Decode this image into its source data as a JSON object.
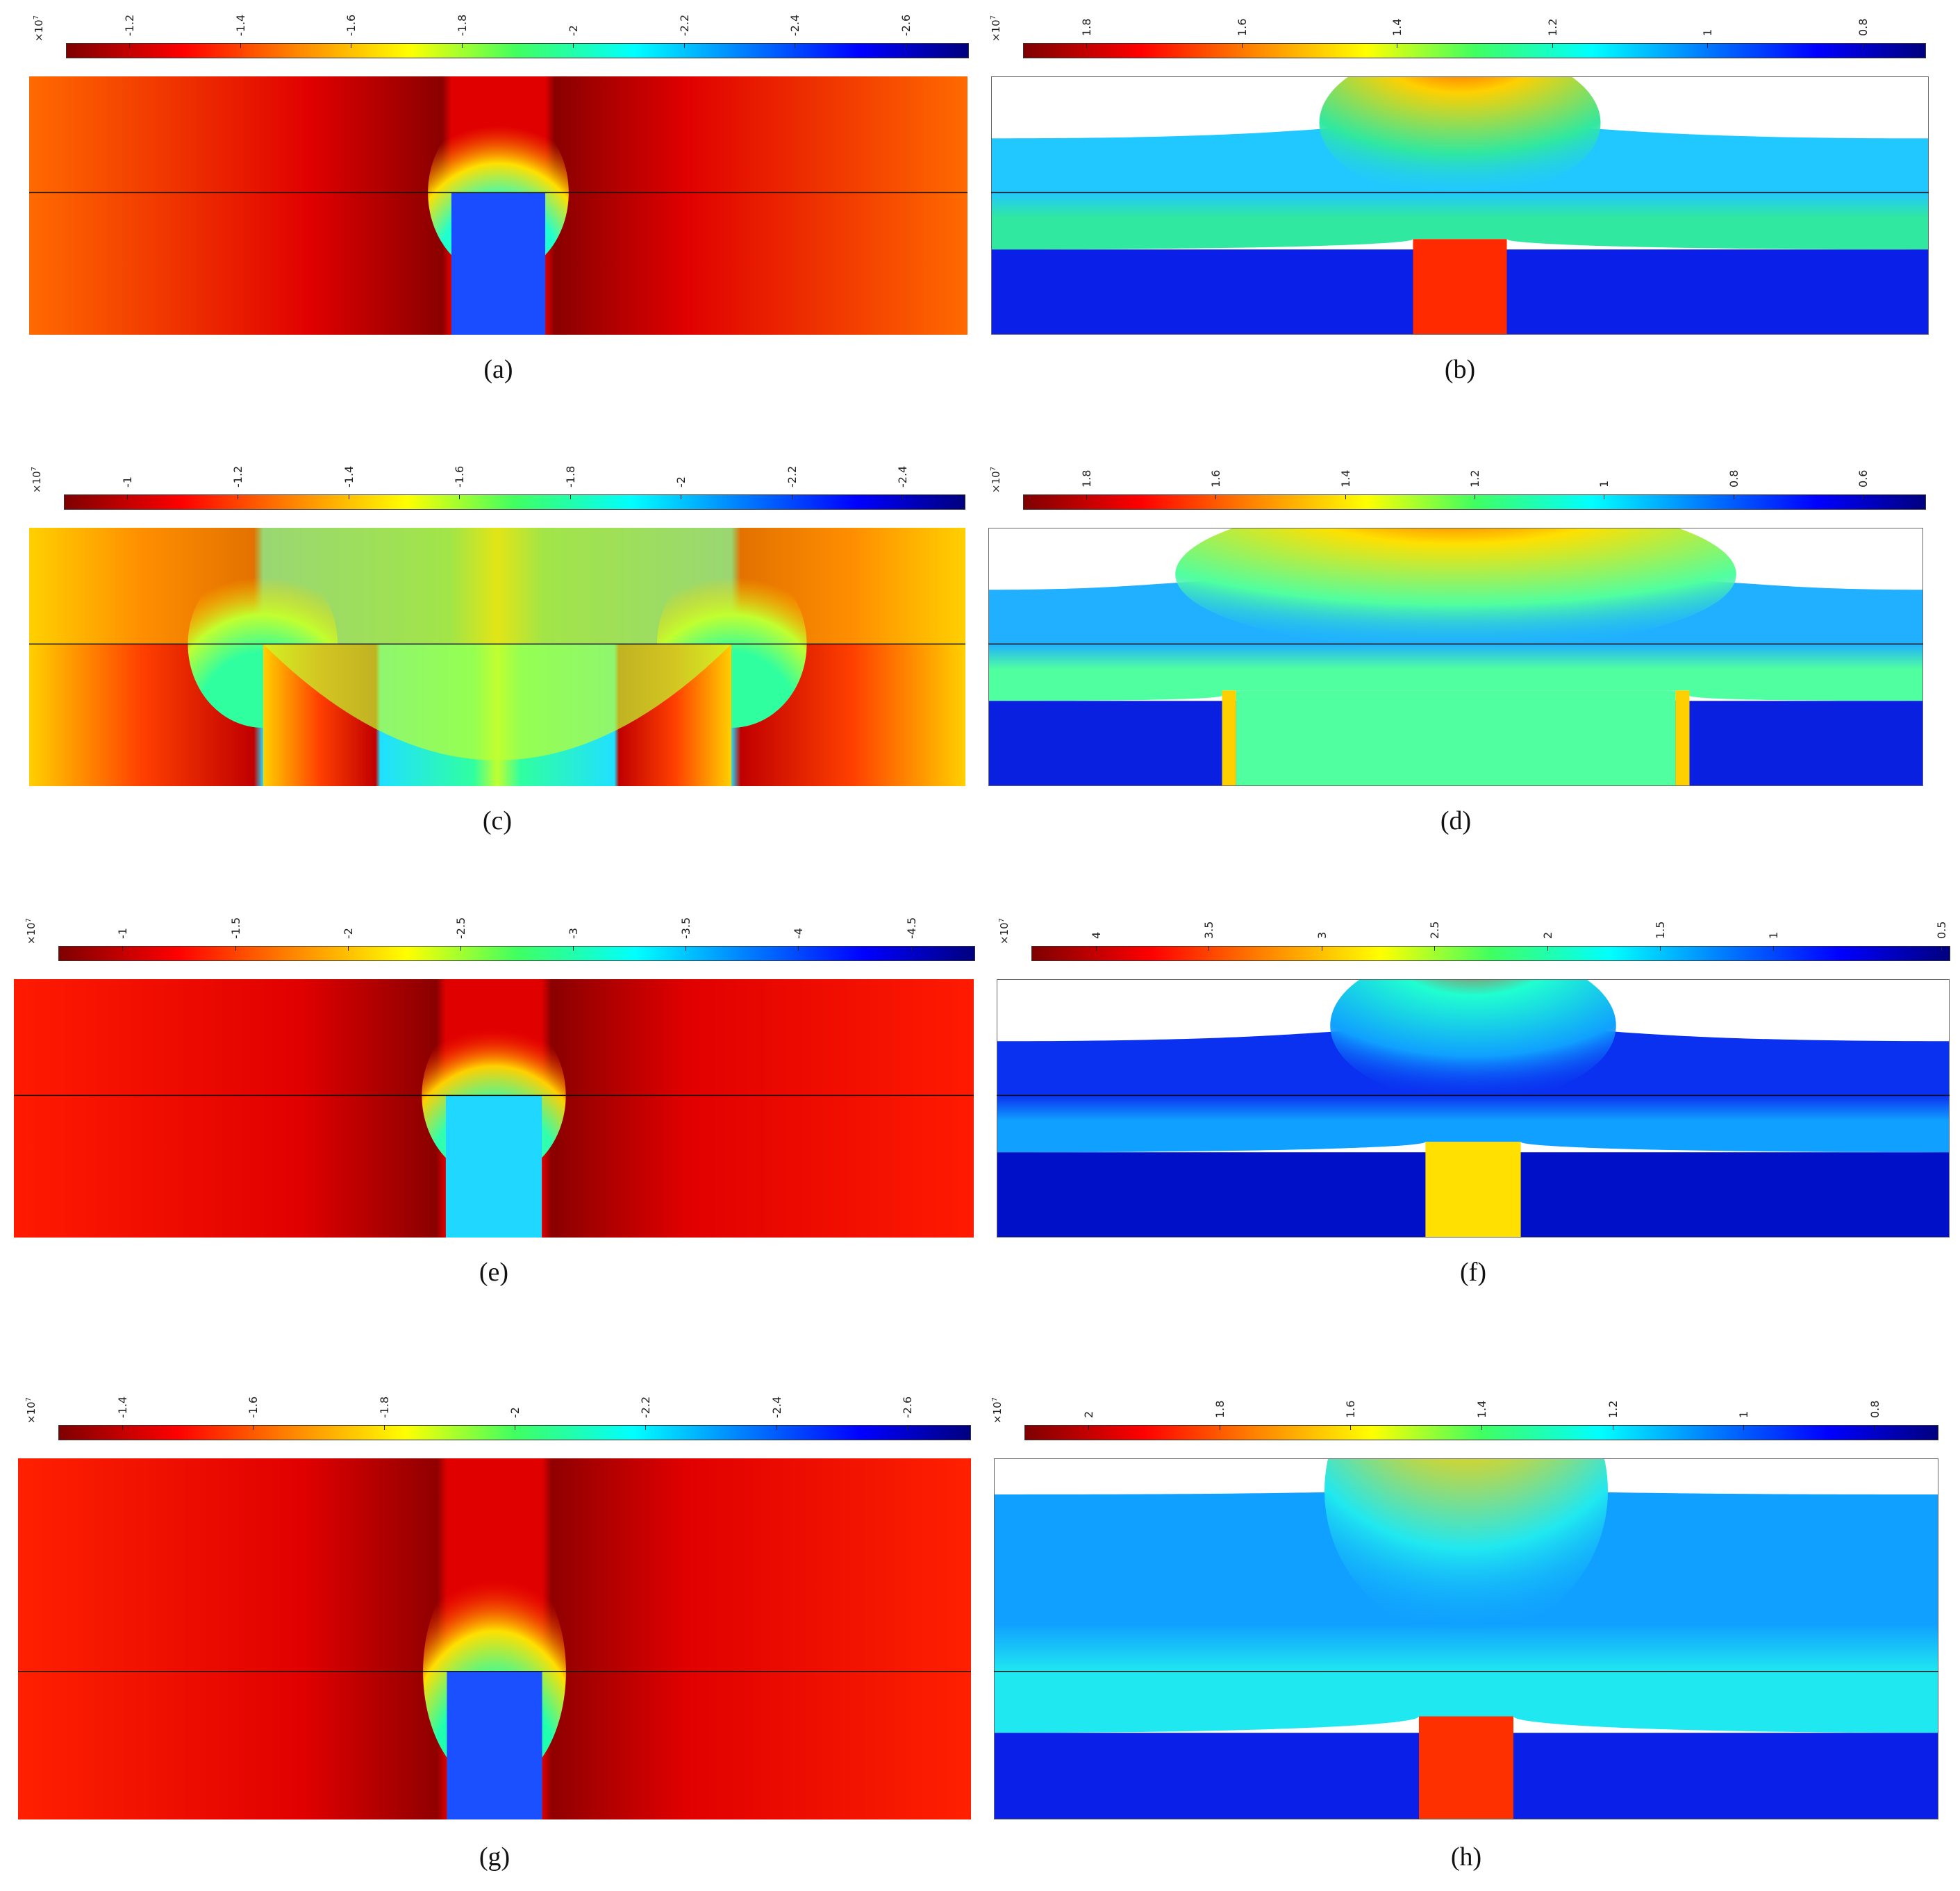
{
  "colormap": [
    "#7f0000",
    "#ff0000",
    "#ff8000",
    "#ffff00",
    "#40ff60",
    "#00ffff",
    "#0080ff",
    "#0000ff",
    "#00007f"
  ],
  "panels": [
    {
      "id": "a",
      "caption": "(a)",
      "unit_base": "×10",
      "unit_exp": "7",
      "ticks": [
        "-1.2",
        "-1.4",
        "-1.6",
        "-1.8",
        "-2",
        "-2.2",
        "-2.4",
        "-2.6"
      ],
      "colors": {
        "bg": "#ff6a00",
        "side": "#e00000",
        "sideDeep": "#8a0000",
        "pillar": "#1a4dff",
        "dome": "#20ffd0",
        "domeRing": "#ffe000"
      }
    },
    {
      "id": "b",
      "caption": "(b)",
      "unit_base": "×10",
      "unit_exp": "7",
      "ticks": [
        "1.8",
        "1.6",
        "1.4",
        "1.2",
        "1",
        "0.8"
      ],
      "colors": {
        "top": "#20c8ff",
        "mid": "#30e8a0",
        "bottom": "#0a20e8",
        "pillar": "#ff2a00",
        "bump": "#ff2000",
        "bumpRing": "#ffd000"
      }
    },
    {
      "id": "c",
      "caption": "(c)",
      "unit_base": "×10",
      "unit_exp": "7",
      "ticks": [
        "-1",
        "-1.2",
        "-1.4",
        "-1.6",
        "-1.8",
        "-2",
        "-2.2",
        "-2.4"
      ],
      "colors": {
        "bg": "#ffd000",
        "side": "#ff4000",
        "sideDeep": "#c00000",
        "pillar": "#20e0ff",
        "dome": "#30ffa0",
        "domeRing": "#c0ff30"
      }
    },
    {
      "id": "d",
      "caption": "(d)",
      "unit_base": "×10",
      "unit_exp": "7",
      "ticks": [
        "1.8",
        "1.6",
        "1.4",
        "1.2",
        "1",
        "0.8",
        "0.6"
      ],
      "colors": {
        "top": "#20b0ff",
        "mid": "#50ffa0",
        "bottom": "#0a20e0",
        "pillar": "#ffd000",
        "bump": "#ff3000",
        "bumpRing": "#ffe000"
      }
    },
    {
      "id": "e",
      "caption": "(e)",
      "unit_base": "×10",
      "unit_exp": "7",
      "ticks": [
        "-1",
        "-1.5",
        "-2",
        "-2.5",
        "-3",
        "-3.5",
        "-4",
        "-4.5"
      ],
      "colors": {
        "bg": "#ff1a00",
        "side": "#e00000",
        "sideDeep": "#8a0000",
        "pillar": "#20d8ff",
        "dome": "#30ffb0",
        "domeRing": "#ffd000"
      }
    },
    {
      "id": "f",
      "caption": "(f)",
      "unit_base": "×10",
      "unit_exp": "7",
      "ticks": [
        "4",
        "3.5",
        "3",
        "2.5",
        "2",
        "1.5",
        "1",
        "0.5"
      ],
      "colors": {
        "top": "#0a30f0",
        "mid": "#10a0ff",
        "bottom": "#0010c8",
        "pillar": "#ffe000",
        "bump": "#ff2000",
        "bumpRing": "#20ffd0"
      }
    },
    {
      "id": "g",
      "caption": "(g)",
      "unit_base": "×10",
      "unit_exp": "7",
      "ticks": [
        "-1.4",
        "-1.6",
        "-1.8",
        "-2",
        "-2.2",
        "-2.4",
        "-2.6"
      ],
      "colors": {
        "bg": "#ff2000",
        "side": "#e00000",
        "sideDeep": "#900000",
        "pillar": "#1a50ff",
        "dome": "#20ffb0",
        "domeRing": "#ffe000"
      }
    },
    {
      "id": "h",
      "caption": "(h)",
      "unit_base": "×10",
      "unit_exp": "7",
      "ticks": [
        "2",
        "1.8",
        "1.6",
        "1.4",
        "1.2",
        "1",
        "0.8"
      ],
      "colors": {
        "top": "#10a0ff",
        "mid": "#20e8f0",
        "bottom": "#0a20e8",
        "pillar": "#ff3000",
        "bump": "#60ff60",
        "bumpRing": "#ffd000"
      }
    }
  ]
}
